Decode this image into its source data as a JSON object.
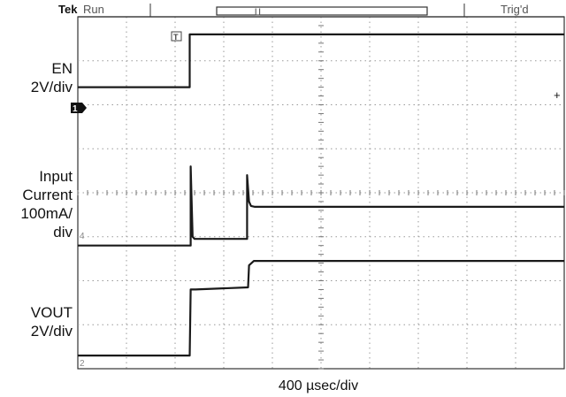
{
  "header": {
    "brand": "Tek",
    "run_state": "Run",
    "trigger_status": "Trig'd",
    "trigger_marker": "T"
  },
  "channels": [
    {
      "name": "EN",
      "scale": "2V/div",
      "marker": "1"
    },
    {
      "name": "Input Current",
      "scale": "100mA/div",
      "marker": "4"
    },
    {
      "name": "VOUT",
      "scale": "2V/div",
      "marker": "2"
    }
  ],
  "labels": {
    "en_line1": "EN",
    "en_line2": "2V/div",
    "ic_line1": "Input",
    "ic_line2": "Current",
    "ic_line3": "100mA/",
    "ic_line4": "div",
    "vout_line1": "VOUT",
    "vout_line2": "2V/div",
    "timebase": "400 µsec/div"
  },
  "chart_data": {
    "type": "line",
    "x_unit": "div",
    "xlim": [
      0,
      10
    ],
    "ylim": [
      -4,
      4
    ],
    "grid": true,
    "series": [
      {
        "name": "EN",
        "x": [
          0,
          2.3,
          2.3,
          10
        ],
        "y": [
          2.4,
          2.4,
          3.6,
          3.6
        ]
      },
      {
        "name": "Input Current",
        "x": [
          0,
          2.3,
          2.32,
          2.32,
          2.36,
          2.4,
          2.5,
          3.4,
          3.48,
          3.48,
          3.52,
          3.56,
          3.64,
          10
        ],
        "y": [
          -1.2,
          -1.2,
          -1.2,
          0.6,
          -1.0,
          -1.05,
          -1.05,
          -1.05,
          -1.05,
          0.4,
          -0.2,
          -0.3,
          -0.32,
          -0.32
        ]
      },
      {
        "name": "VOUT",
        "x": [
          0,
          2.3,
          2.32,
          2.42,
          3.5,
          3.52,
          3.62,
          10
        ],
        "y": [
          -3.7,
          -3.7,
          -2.2,
          -2.2,
          -2.15,
          -1.65,
          -1.55,
          -1.55
        ]
      }
    ]
  }
}
